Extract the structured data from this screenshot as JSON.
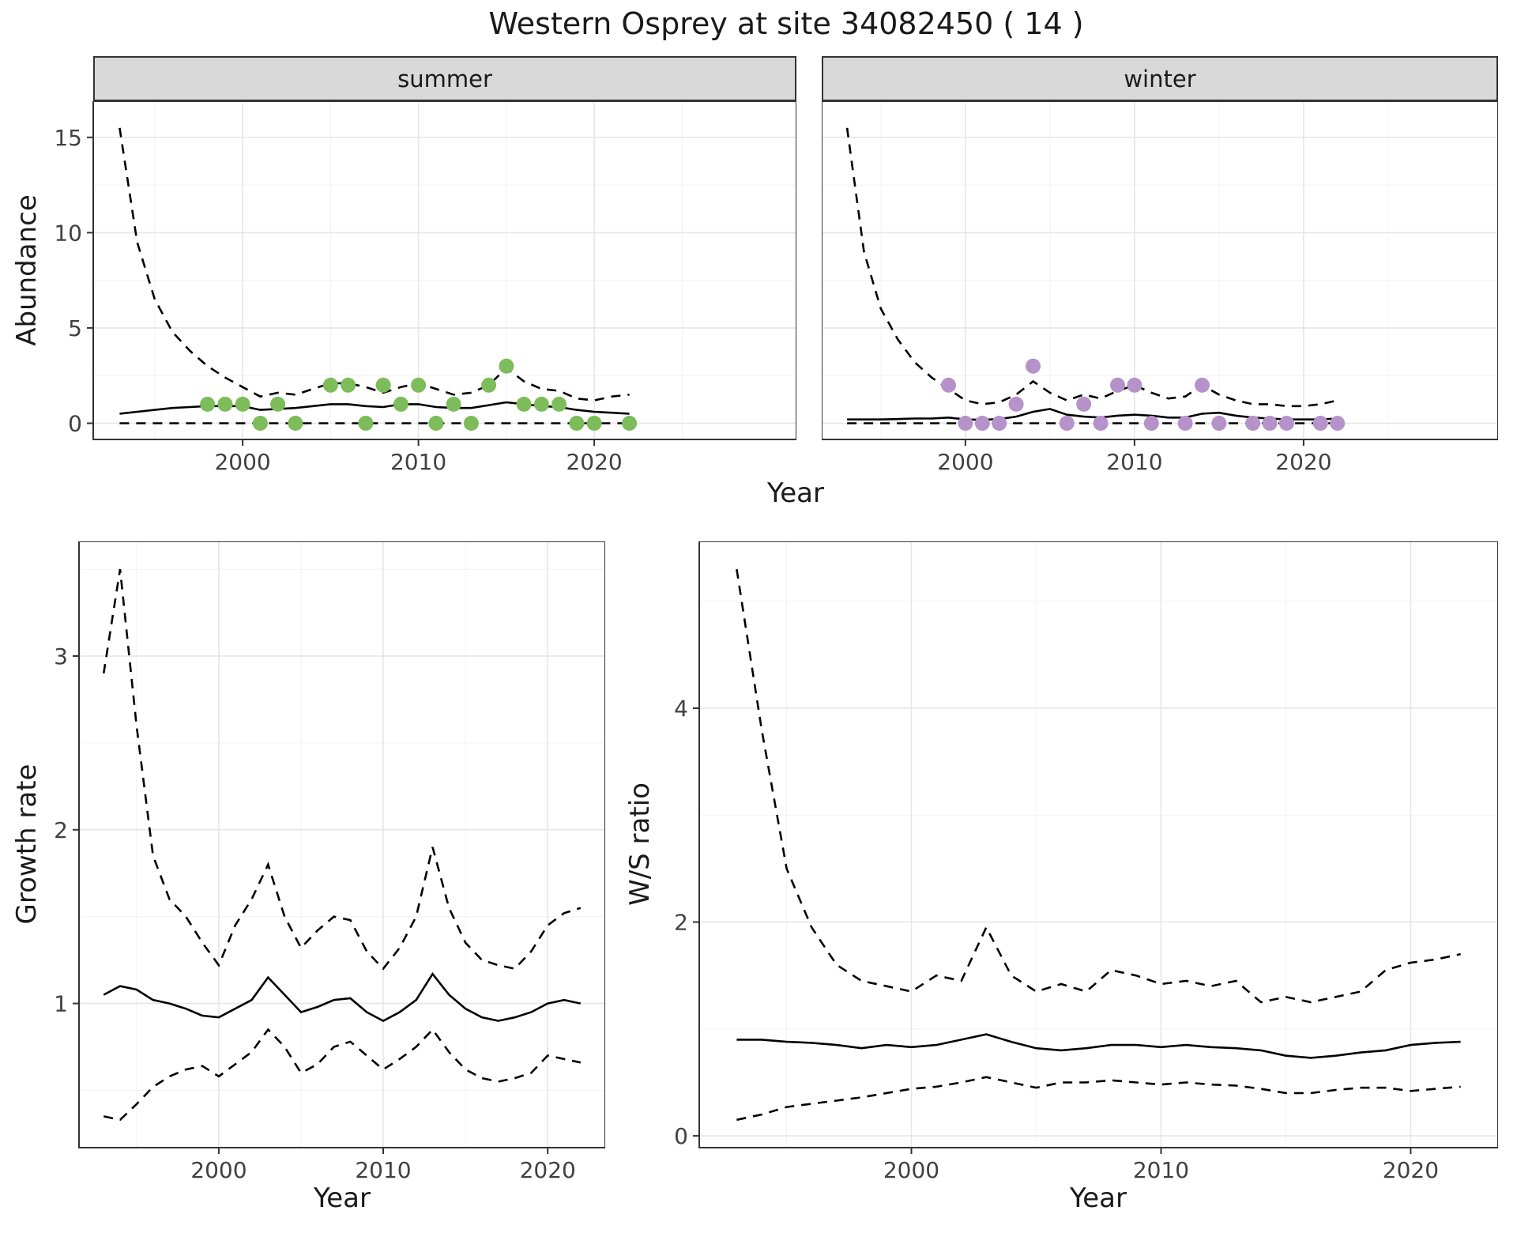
{
  "title": "Western Osprey at site 34082450 ( 14 )",
  "colors": {
    "summer_point": "#7cbc5a",
    "winter_point": "#b592c9",
    "line": "#000000",
    "strip_bg": "#d9d9d9",
    "panel_border": "#333333",
    "grid_major": "#e6e6e6",
    "grid_minor": "#f2f2f2",
    "tick_text": "#404040"
  },
  "chart_data": [
    {
      "name": "abundance-summer",
      "type": "line",
      "facet_label": "summer",
      "xlabel": "Year",
      "ylabel": "Abundance",
      "xlim": [
        1991.5,
        2031.5
      ],
      "ylim": [
        -0.85,
        16.9
      ],
      "xticks": [
        2000,
        2010,
        2020
      ],
      "yticks": [
        0,
        5,
        10,
        15
      ],
      "grid": true,
      "legend": "none",
      "years": [
        1993,
        1994,
        1995,
        1996,
        1997,
        1998,
        1999,
        2000,
        2001,
        2002,
        2003,
        2004,
        2005,
        2006,
        2007,
        2008,
        2009,
        2010,
        2011,
        2012,
        2013,
        2014,
        2015,
        2016,
        2017,
        2018,
        2019,
        2020,
        2021,
        2022
      ],
      "series": [
        {
          "name": "upper-95ci",
          "style": "dashed",
          "values": [
            15.5,
            9.5,
            6.5,
            4.8,
            3.8,
            3.0,
            2.4,
            1.9,
            1.4,
            1.6,
            1.5,
            1.8,
            2.1,
            2.1,
            1.9,
            1.6,
            1.9,
            2.1,
            1.8,
            1.5,
            1.6,
            2.0,
            2.9,
            2.2,
            1.8,
            1.7,
            1.3,
            1.2,
            1.4,
            1.5
          ]
        },
        {
          "name": "median",
          "style": "solid",
          "values": [
            0.5,
            0.6,
            0.7,
            0.8,
            0.85,
            0.9,
            0.9,
            0.9,
            0.7,
            0.75,
            0.8,
            0.9,
            1.0,
            1.0,
            0.9,
            0.85,
            1.0,
            1.0,
            0.85,
            0.8,
            0.8,
            0.95,
            1.1,
            1.0,
            0.9,
            0.85,
            0.7,
            0.6,
            0.55,
            0.5
          ]
        },
        {
          "name": "lower-95ci",
          "style": "dashed",
          "values": [
            0,
            0,
            0,
            0,
            0,
            0,
            0,
            0,
            0,
            0,
            0,
            0,
            0,
            0,
            0,
            0,
            0,
            0,
            0,
            0,
            0,
            0,
            0,
            0,
            0,
            0,
            0,
            0,
            0,
            0
          ]
        }
      ],
      "points": {
        "name": "observed-counts-summer",
        "color": "summer_point",
        "data": [
          [
            1998,
            1
          ],
          [
            1999,
            1
          ],
          [
            2000,
            1
          ],
          [
            2001,
            0
          ],
          [
            2002,
            1
          ],
          [
            2003,
            0
          ],
          [
            2005,
            2
          ],
          [
            2006,
            2
          ],
          [
            2007,
            0
          ],
          [
            2008,
            2
          ],
          [
            2009,
            1
          ],
          [
            2010,
            2
          ],
          [
            2011,
            0
          ],
          [
            2012,
            1
          ],
          [
            2013,
            0
          ],
          [
            2014,
            2
          ],
          [
            2015,
            3
          ],
          [
            2016,
            1
          ],
          [
            2017,
            1
          ],
          [
            2018,
            1
          ],
          [
            2019,
            0
          ],
          [
            2020,
            0
          ],
          [
            2022,
            0
          ]
        ]
      }
    },
    {
      "name": "abundance-winter",
      "type": "line",
      "facet_label": "winter",
      "xlabel": "Year",
      "xlim": [
        1991.5,
        2031.5
      ],
      "ylim": [
        -0.85,
        16.9
      ],
      "xticks": [
        2000,
        2010,
        2020
      ],
      "yticks": [
        0,
        5,
        10,
        15
      ],
      "grid": true,
      "legend": "none",
      "years": [
        1993,
        1994,
        1995,
        1996,
        1997,
        1998,
        1999,
        2000,
        2001,
        2002,
        2003,
        2004,
        2005,
        2006,
        2007,
        2008,
        2009,
        2010,
        2011,
        2012,
        2013,
        2014,
        2015,
        2016,
        2017,
        2018,
        2019,
        2020,
        2021,
        2022
      ],
      "series": [
        {
          "name": "upper-95ci",
          "style": "dashed",
          "values": [
            15.5,
            9.0,
            6.0,
            4.4,
            3.2,
            2.4,
            1.8,
            1.2,
            1.0,
            1.1,
            1.5,
            2.2,
            1.6,
            1.2,
            1.5,
            1.3,
            1.7,
            2.0,
            1.6,
            1.3,
            1.4,
            2.0,
            1.5,
            1.2,
            1.0,
            1.0,
            0.9,
            0.9,
            1.0,
            1.2
          ]
        },
        {
          "name": "median",
          "style": "solid",
          "values": [
            0.2,
            0.2,
            0.2,
            0.22,
            0.25,
            0.25,
            0.3,
            0.2,
            0.18,
            0.22,
            0.35,
            0.6,
            0.75,
            0.45,
            0.35,
            0.3,
            0.4,
            0.45,
            0.4,
            0.3,
            0.3,
            0.5,
            0.55,
            0.4,
            0.3,
            0.25,
            0.2,
            0.2,
            0.2,
            0.25
          ]
        },
        {
          "name": "lower-95ci",
          "style": "dashed",
          "values": [
            0,
            0,
            0,
            0,
            0,
            0,
            0,
            0,
            0,
            0,
            0,
            0,
            0,
            0,
            0,
            0,
            0,
            0,
            0,
            0,
            0,
            0,
            0,
            0,
            0,
            0,
            0,
            0,
            0,
            0
          ]
        }
      ],
      "points": {
        "name": "observed-counts-winter",
        "color": "winter_point",
        "data": [
          [
            1999,
            2
          ],
          [
            2000,
            0
          ],
          [
            2001,
            0
          ],
          [
            2002,
            0
          ],
          [
            2003,
            1
          ],
          [
            2004,
            3
          ],
          [
            2006,
            0
          ],
          [
            2007,
            1
          ],
          [
            2008,
            0
          ],
          [
            2009,
            2
          ],
          [
            2010,
            2
          ],
          [
            2011,
            0
          ],
          [
            2013,
            0
          ],
          [
            2014,
            2
          ],
          [
            2015,
            0
          ],
          [
            2017,
            0
          ],
          [
            2018,
            0
          ],
          [
            2019,
            0
          ],
          [
            2021,
            0
          ],
          [
            2022,
            0
          ]
        ]
      }
    },
    {
      "name": "growth-rate",
      "type": "line",
      "xlabel": "Year",
      "ylabel": "Growth rate",
      "xlim": [
        1991.5,
        2023.5
      ],
      "ylim": [
        0.17,
        3.66
      ],
      "xticks": [
        2000,
        2010,
        2020
      ],
      "yticks": [
        1,
        2,
        3
      ],
      "grid": true,
      "legend": "none",
      "years": [
        1993,
        1994,
        1995,
        1996,
        1997,
        1998,
        1999,
        2000,
        2001,
        2002,
        2003,
        2004,
        2005,
        2006,
        2007,
        2008,
        2009,
        2010,
        2011,
        2012,
        2013,
        2014,
        2015,
        2016,
        2017,
        2018,
        2019,
        2020,
        2021,
        2022
      ],
      "series": [
        {
          "name": "upper-95ci",
          "style": "dashed",
          "values": [
            2.9,
            3.5,
            2.6,
            1.85,
            1.6,
            1.5,
            1.35,
            1.22,
            1.45,
            1.6,
            1.8,
            1.5,
            1.32,
            1.42,
            1.5,
            1.48,
            1.3,
            1.2,
            1.32,
            1.5,
            1.9,
            1.55,
            1.35,
            1.25,
            1.22,
            1.2,
            1.3,
            1.45,
            1.52,
            1.55
          ]
        },
        {
          "name": "median",
          "style": "solid",
          "values": [
            1.05,
            1.1,
            1.08,
            1.02,
            1.0,
            0.97,
            0.93,
            0.92,
            0.97,
            1.02,
            1.15,
            1.05,
            0.95,
            0.98,
            1.02,
            1.03,
            0.95,
            0.9,
            0.95,
            1.02,
            1.17,
            1.05,
            0.97,
            0.92,
            0.9,
            0.92,
            0.95,
            1.0,
            1.02,
            1.0
          ]
        },
        {
          "name": "lower-95ci",
          "style": "dashed",
          "values": [
            0.35,
            0.33,
            0.42,
            0.52,
            0.58,
            0.62,
            0.64,
            0.58,
            0.65,
            0.72,
            0.85,
            0.75,
            0.6,
            0.65,
            0.75,
            0.78,
            0.7,
            0.62,
            0.68,
            0.75,
            0.85,
            0.72,
            0.62,
            0.57,
            0.55,
            0.57,
            0.6,
            0.7,
            0.68,
            0.66
          ]
        }
      ]
    },
    {
      "name": "ws-ratio",
      "type": "line",
      "xlabel": "Year",
      "ylabel": "W/S ratio",
      "xlim": [
        1991.5,
        2023.5
      ],
      "ylim": [
        -0.11,
        5.56
      ],
      "xticks": [
        2000,
        2010,
        2020
      ],
      "yticks": [
        0,
        2,
        4
      ],
      "grid": true,
      "legend": "none",
      "years": [
        1993,
        1994,
        1995,
        1996,
        1997,
        1998,
        1999,
        2000,
        2001,
        2002,
        2003,
        2004,
        2005,
        2006,
        2007,
        2008,
        2009,
        2010,
        2011,
        2012,
        2013,
        2014,
        2015,
        2016,
        2017,
        2018,
        2019,
        2020,
        2021,
        2022
      ],
      "series": [
        {
          "name": "upper-95ci",
          "style": "dashed",
          "values": [
            5.3,
            3.8,
            2.5,
            1.95,
            1.6,
            1.45,
            1.4,
            1.35,
            1.5,
            1.45,
            1.95,
            1.5,
            1.35,
            1.42,
            1.35,
            1.55,
            1.5,
            1.42,
            1.45,
            1.4,
            1.45,
            1.25,
            1.3,
            1.25,
            1.3,
            1.35,
            1.55,
            1.62,
            1.65,
            1.7
          ]
        },
        {
          "name": "median",
          "style": "solid",
          "values": [
            0.9,
            0.9,
            0.88,
            0.87,
            0.85,
            0.82,
            0.85,
            0.83,
            0.85,
            0.9,
            0.95,
            0.88,
            0.82,
            0.8,
            0.82,
            0.85,
            0.85,
            0.83,
            0.85,
            0.83,
            0.82,
            0.8,
            0.75,
            0.73,
            0.75,
            0.78,
            0.8,
            0.85,
            0.87,
            0.88
          ]
        },
        {
          "name": "lower-95ci",
          "style": "dashed",
          "values": [
            0.15,
            0.2,
            0.27,
            0.3,
            0.33,
            0.36,
            0.4,
            0.44,
            0.46,
            0.5,
            0.55,
            0.5,
            0.45,
            0.5,
            0.5,
            0.52,
            0.5,
            0.48,
            0.5,
            0.48,
            0.47,
            0.44,
            0.4,
            0.4,
            0.43,
            0.45,
            0.45,
            0.42,
            0.44,
            0.46
          ]
        }
      ]
    }
  ]
}
